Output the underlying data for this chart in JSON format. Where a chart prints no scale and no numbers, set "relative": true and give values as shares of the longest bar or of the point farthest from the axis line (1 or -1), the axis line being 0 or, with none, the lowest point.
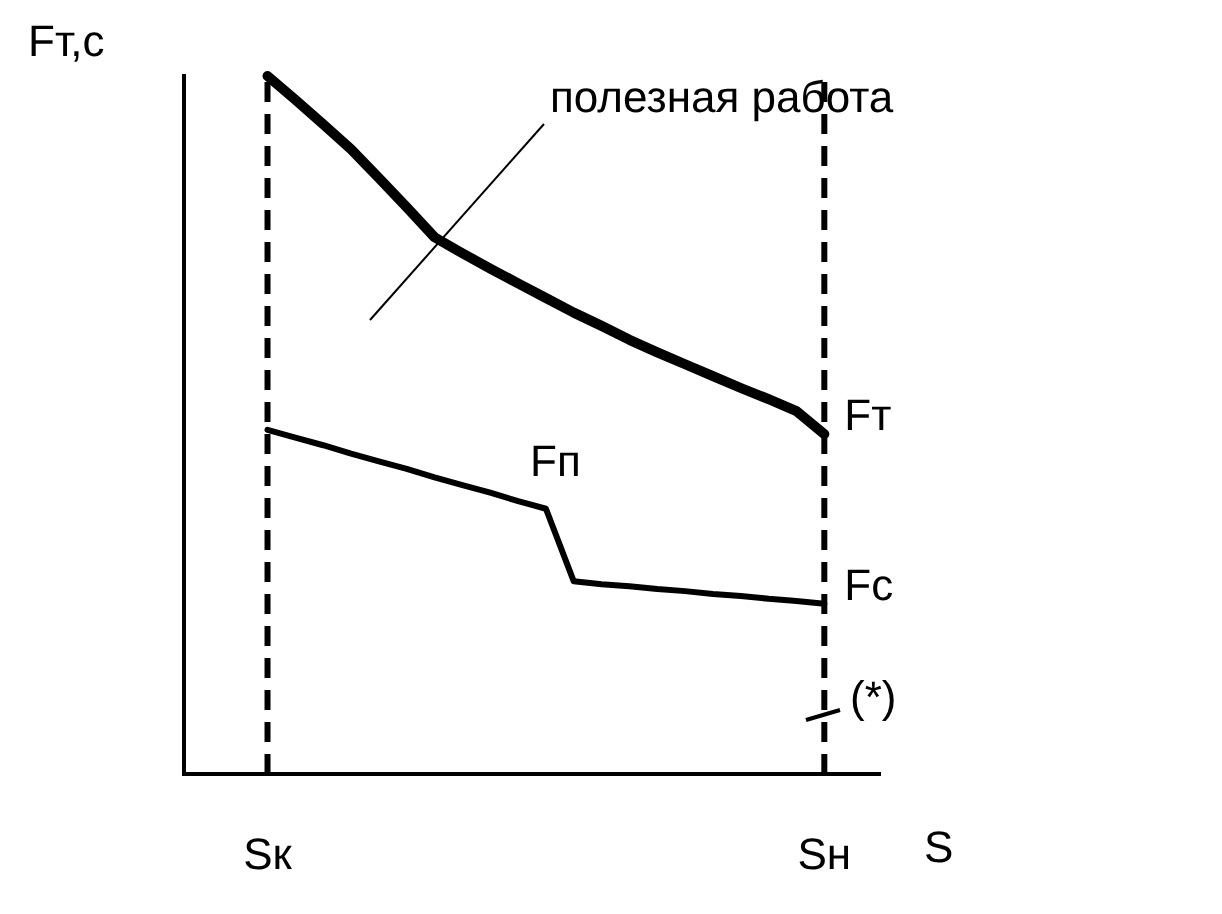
{
  "chart_data": {
    "type": "line",
    "ylabel": "Fт,с",
    "xlabel": "S",
    "relative": true,
    "categories": [
      null,
      null,
      null,
      "Sк",
      null,
      null,
      null,
      null,
      null,
      null,
      null,
      null,
      null,
      null,
      null,
      null,
      null,
      null,
      null,
      null,
      null,
      null,
      null,
      "Sн",
      null,
      null
    ],
    "series": [
      {
        "name": "Fт",
        "color": "#000000",
        "values": [
          null,
          null,
          null,
          1.0,
          0.966,
          0.931,
          0.895,
          0.854,
          0.812,
          0.769,
          0.746,
          0.724,
          0.703,
          0.682,
          0.661,
          0.642,
          0.622,
          0.604,
          0.587,
          0.57,
          0.553,
          0.537,
          0.52,
          0.487,
          null,
          null
        ]
      },
      {
        "name": "Fc",
        "color": "#000000",
        "values": [
          null,
          null,
          null,
          0.493,
          0.482,
          0.471,
          0.459,
          0.448,
          0.437,
          0.425,
          0.414,
          0.403,
          0.391,
          0.38,
          0.276,
          0.272,
          0.269,
          0.265,
          0.262,
          0.258,
          0.255,
          0.251,
          0.248,
          0.244,
          null,
          null
        ]
      }
    ],
    "ref_lines": [
      {
        "axis": "x",
        "value": "Sк",
        "color": "#000000",
        "line_style": "dashed"
      },
      {
        "axis": "x",
        "value": "Sн",
        "color": "#000000",
        "line_style": "dashed"
      }
    ],
    "annotations": [
      "полезная работа",
      "Fп",
      "(*)"
    ],
    "grid": false,
    "legend": false,
    "marker": "none",
    "line_style": "solid"
  }
}
